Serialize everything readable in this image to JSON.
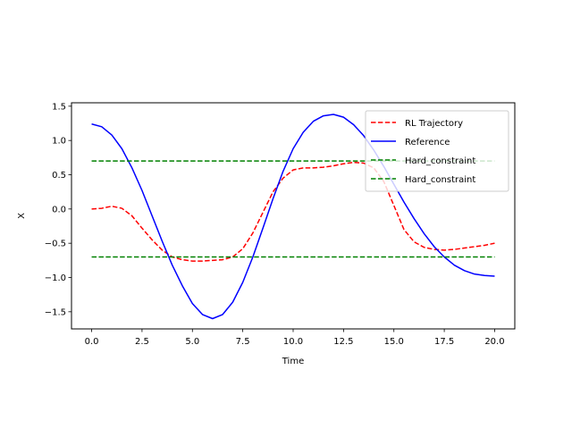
{
  "chart_data": {
    "type": "line",
    "title": "",
    "xlabel": "Time",
    "ylabel": "X",
    "xlim": [
      -1.0,
      21.0
    ],
    "ylim": [
      -1.75,
      1.55
    ],
    "xticks": [
      0.0,
      2.5,
      5.0,
      7.5,
      10.0,
      12.5,
      15.0,
      17.5,
      20.0
    ],
    "xtick_labels": [
      "0.0",
      "2.5",
      "5.0",
      "7.5",
      "10.0",
      "12.5",
      "15.0",
      "17.5",
      "20.0"
    ],
    "yticks": [
      -1.5,
      -1.0,
      -0.5,
      0.0,
      0.5,
      1.0,
      1.5
    ],
    "ytick_labels": [
      "−1.5",
      "−1.0",
      "−0.5",
      "0.0",
      "0.5",
      "1.0",
      "1.5"
    ],
    "grid": false,
    "legend_position": "top-right",
    "series": [
      {
        "name": "RL Trajectory",
        "color": "#ff0000",
        "dash": "dashed",
        "x": [
          0,
          0.5,
          1,
          1.5,
          2,
          2.5,
          3,
          3.5,
          4,
          4.5,
          5,
          5.5,
          6,
          6.5,
          7,
          7.5,
          8,
          8.5,
          9,
          9.5,
          10,
          10.5,
          11,
          11.5,
          12,
          12.5,
          13,
          13.5,
          14,
          14.5,
          15,
          15.5,
          16,
          16.5,
          17,
          17.5,
          18,
          18.5,
          19,
          19.5,
          20
        ],
        "y": [
          0.0,
          0.01,
          0.04,
          0.01,
          -0.1,
          -0.28,
          -0.45,
          -0.6,
          -0.7,
          -0.74,
          -0.76,
          -0.76,
          -0.75,
          -0.74,
          -0.7,
          -0.58,
          -0.35,
          -0.05,
          0.25,
          0.45,
          0.57,
          0.6,
          0.6,
          0.61,
          0.63,
          0.66,
          0.68,
          0.67,
          0.6,
          0.4,
          0.05,
          -0.3,
          -0.48,
          -0.56,
          -0.59,
          -0.6,
          -0.59,
          -0.57,
          -0.55,
          -0.53,
          -0.5
        ]
      },
      {
        "name": "Reference",
        "color": "#0000ff",
        "dash": "solid",
        "x": [
          0,
          0.5,
          1,
          1.5,
          2,
          2.5,
          3,
          3.5,
          4,
          4.5,
          5,
          5.5,
          6,
          6.5,
          7,
          7.5,
          8,
          8.5,
          9,
          9.5,
          10,
          10.5,
          11,
          11.5,
          12,
          12.5,
          13,
          13.5,
          14,
          14.5,
          15,
          15.5,
          16,
          16.5,
          17,
          17.5,
          18,
          18.5,
          19,
          19.5,
          20
        ],
        "y": [
          1.24,
          1.2,
          1.08,
          0.88,
          0.6,
          0.27,
          -0.1,
          -0.47,
          -0.82,
          -1.12,
          -1.38,
          -1.54,
          -1.6,
          -1.54,
          -1.36,
          -1.07,
          -0.7,
          -0.28,
          0.15,
          0.55,
          0.88,
          1.12,
          1.28,
          1.36,
          1.38,
          1.34,
          1.23,
          1.07,
          0.86,
          0.62,
          0.36,
          0.1,
          -0.14,
          -0.36,
          -0.55,
          -0.7,
          -0.82,
          -0.9,
          -0.95,
          -0.97,
          -0.98
        ]
      },
      {
        "name": "Hard_constraint",
        "color": "#008000",
        "dash": "dashed",
        "x": [
          0,
          20
        ],
        "y": [
          0.7,
          0.7
        ]
      },
      {
        "name": "Hard_constraint",
        "color": "#008000",
        "dash": "dashed",
        "x": [
          0,
          20
        ],
        "y": [
          -0.7,
          -0.7
        ]
      }
    ]
  }
}
